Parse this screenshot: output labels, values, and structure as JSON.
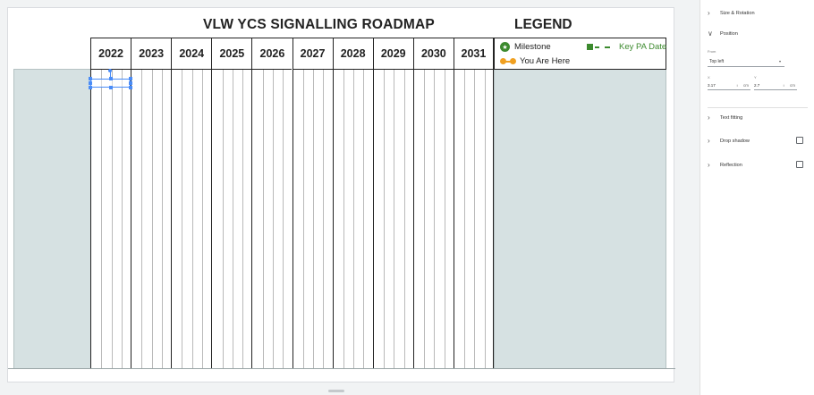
{
  "slide": {
    "title": "VLW YCS SIGNALLING ROADMAP",
    "legend_title": "LEGEND",
    "years": [
      "2022",
      "2023",
      "2024",
      "2025",
      "2026",
      "2027",
      "2028",
      "2029",
      "2030",
      "2031"
    ],
    "legend": {
      "milestone": "Milestone",
      "key_pa_date": "Key PA Date",
      "you_are_here": "You Are Here"
    },
    "colors": {
      "band": "#d6e1e2",
      "milestone_green": "#3c8a2e",
      "here_orange": "#f0a020",
      "selection_blue": "#4a8cf7"
    }
  },
  "panel": {
    "sections": [
      {
        "label": "Size & Rotation",
        "expanded": false
      },
      {
        "label": "Position",
        "expanded": true
      },
      {
        "label": "Text fitting",
        "expanded": false
      },
      {
        "label": "Drop shadow",
        "expanded": false,
        "checkbox": true
      },
      {
        "label": "Reflection",
        "expanded": false,
        "checkbox": true
      }
    ],
    "position": {
      "from_label": "From",
      "from_value": "Top left",
      "x_label": "X",
      "x_value": "3.17",
      "y_label": "Y",
      "y_value": "2.7",
      "unit": "cm"
    }
  }
}
